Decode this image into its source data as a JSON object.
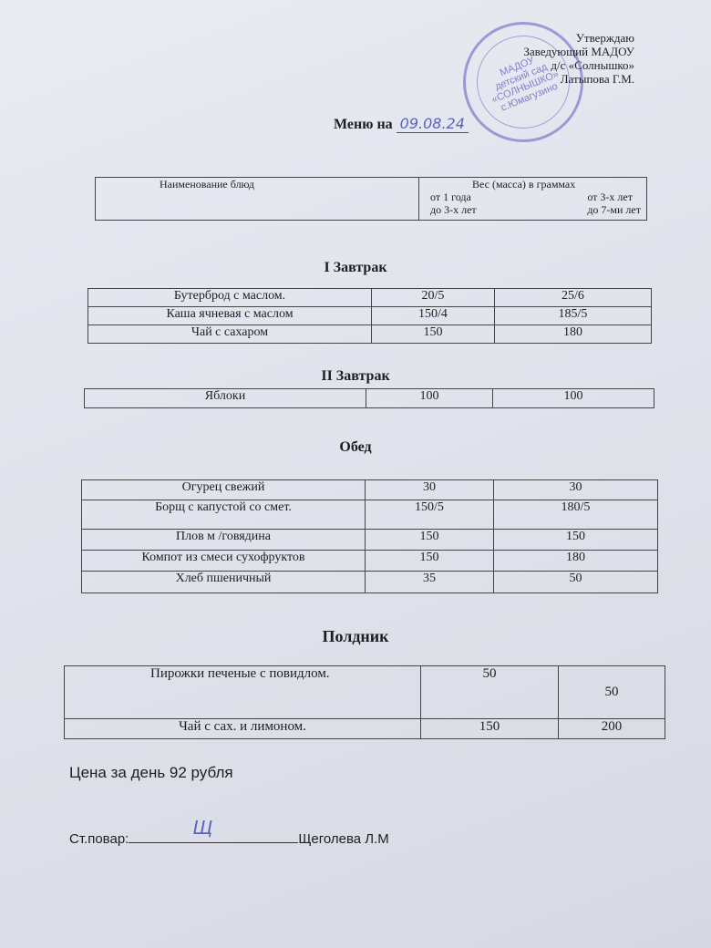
{
  "approval": {
    "line1": "Утверждаю",
    "line2": "Заведующий МАДОУ",
    "line3": "д/с «Солнышко»",
    "line4": "Латыпова Г.М."
  },
  "stamp": {
    "text": [
      "МАДОУ",
      "детский сад",
      "«СОЛНЫШКО»",
      "с.Юмагузино"
    ]
  },
  "title": {
    "label": "Меню на",
    "date": "09.08.24"
  },
  "header": {
    "col1": "Наименование блюд",
    "col2": "Вес (масса)  в граммах",
    "age1_a": "от 1 года",
    "age1_b": "до 3-х лет",
    "age2_a": "от 3-х лет",
    "age2_b": "до 7-ми лет"
  },
  "sections": [
    {
      "title": "I Завтрак",
      "rows": [
        [
          "Бутерброд с маслом.",
          "20/5",
          "25/6"
        ],
        [
          "Каша ячневая с маслом",
          "150/4",
          "185/5"
        ],
        [
          "Чай с  сахаром",
          "150",
          "180"
        ]
      ]
    },
    {
      "title": "II Завтрак",
      "rows": [
        [
          "Яблоки",
          "100",
          "100"
        ]
      ]
    },
    {
      "title": "Обед",
      "rows": [
        [
          "Огурец свежий",
          "30",
          "30"
        ],
        [
          "Борщ с капустой со смет.",
          "150/5",
          "180/5"
        ],
        [
          "Плов м /говядина",
          "150",
          "150"
        ],
        [
          "Компот из смеси сухофруктов",
          "150",
          "180"
        ],
        [
          "Хлеб пшеничный",
          "35",
          "50"
        ]
      ]
    },
    {
      "title": "Полдник",
      "rows": [
        [
          "Пирожки печеные с повидлом.",
          "50",
          "50"
        ],
        [
          "Чай с сах. и лимоном.",
          "150",
          "200"
        ]
      ]
    }
  ],
  "price": "Цена за день 92 рубля",
  "cook": {
    "label": "Ст.повар:",
    "signature": "Щ",
    "name": "Щеголева Л.М"
  }
}
